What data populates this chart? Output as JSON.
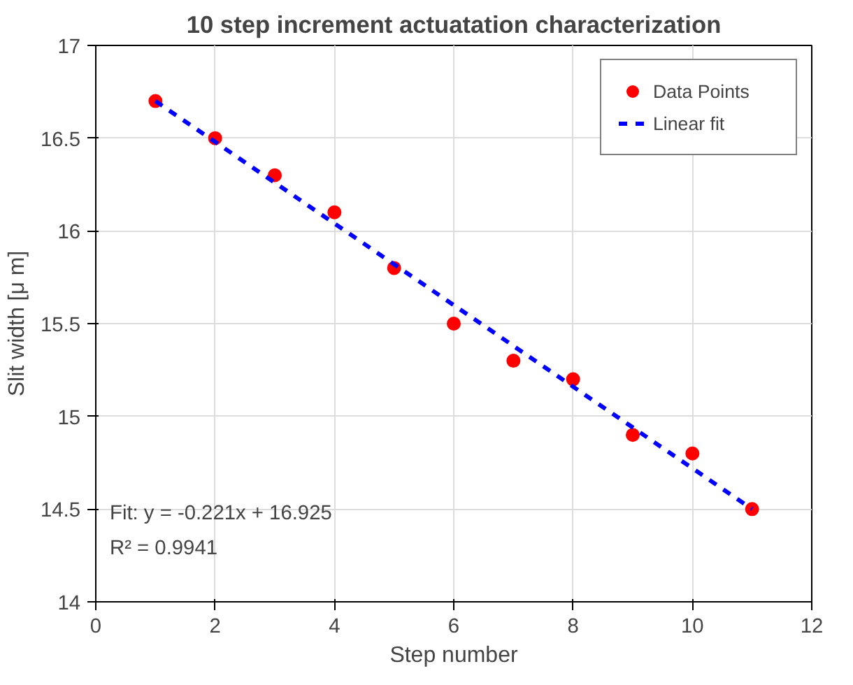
{
  "chart_data": {
    "type": "scatter",
    "title": "10 step increment actuatation characterization",
    "xlabel": "Step number",
    "ylabel": "Slit width [μ m]",
    "xlim": [
      0,
      12
    ],
    "ylim": [
      14,
      17
    ],
    "xticks": [
      0,
      2,
      4,
      6,
      8,
      10,
      12
    ],
    "yticks": [
      14,
      14.5,
      15,
      15.5,
      16,
      16.5,
      17
    ],
    "grid": true,
    "legend": "top right",
    "series": [
      {
        "name": "Data Points",
        "marker": "circle",
        "color": "#ff0000",
        "x": [
          1,
          2,
          3,
          4,
          5,
          6,
          7,
          8,
          9,
          10,
          11
        ],
        "values": [
          16.7,
          16.5,
          16.3,
          16.1,
          15.8,
          15.5,
          15.3,
          15.2,
          14.9,
          14.8,
          14.5
        ]
      },
      {
        "name": "Linear fit",
        "type": "line",
        "line_style": "dashed",
        "color": "#0000ff",
        "x": [
          1,
          11
        ],
        "values": [
          16.7,
          14.5
        ]
      }
    ],
    "annotations": [
      "Fit: y = -0.221x + 16.925",
      "R² = 0.9941"
    ]
  }
}
